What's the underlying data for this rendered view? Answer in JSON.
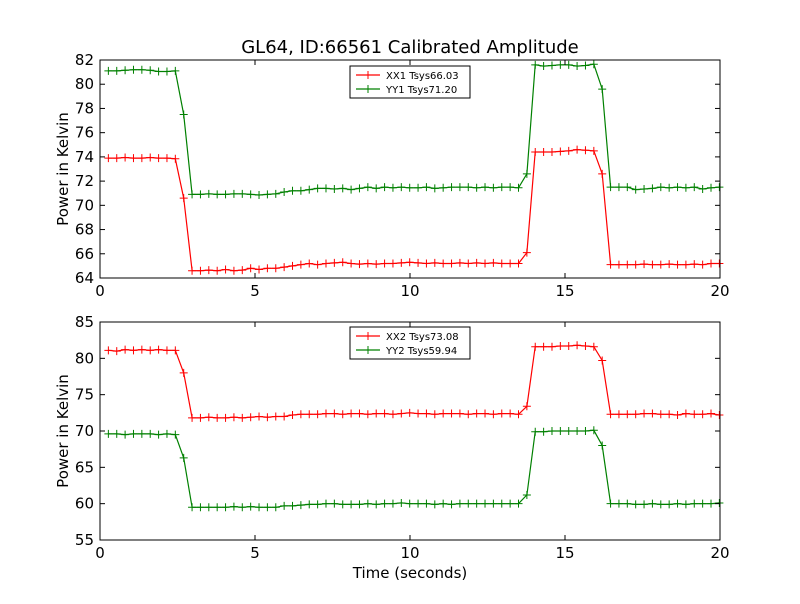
{
  "figure": {
    "title": "GL64, ID:66561 Calibrated Amplitude",
    "xlabel": "Time (seconds)"
  },
  "chart_data": [
    {
      "type": "line",
      "title": "GL64, ID:66561 Calibrated Amplitude",
      "xlabel": "",
      "ylabel": "Power in Kelvin",
      "xlim": [
        0,
        20
      ],
      "ylim": [
        64,
        82
      ],
      "xticks": [
        0,
        5,
        10,
        15,
        20
      ],
      "yticks": [
        64,
        66,
        68,
        70,
        72,
        74,
        76,
        78,
        80,
        82
      ],
      "grid": false,
      "legend_position": "top-center",
      "marker": "+",
      "series": [
        {
          "name": "XX1 Tsys66.03",
          "color": "#ff0000",
          "x": [
            0.27,
            0.54,
            0.81,
            1.08,
            1.35,
            1.62,
            1.89,
            2.16,
            2.43,
            2.7,
            2.97,
            3.24,
            3.51,
            3.78,
            4.05,
            4.32,
            4.59,
            4.86,
            5.13,
            5.4,
            5.67,
            5.94,
            6.21,
            6.48,
            6.75,
            7.02,
            7.29,
            7.56,
            7.83,
            8.1,
            8.37,
            8.64,
            8.91,
            9.18,
            9.45,
            9.72,
            9.99,
            10.26,
            10.53,
            10.8,
            11.07,
            11.34,
            11.61,
            11.88,
            12.15,
            12.42,
            12.69,
            12.96,
            13.23,
            13.5,
            13.77,
            14.04,
            14.31,
            14.58,
            14.85,
            15.12,
            15.39,
            15.66,
            15.93,
            16.2,
            16.47,
            16.74,
            17.01,
            17.28,
            17.55,
            17.82,
            18.09,
            18.36,
            18.63,
            18.9,
            19.17,
            19.44,
            19.71,
            19.98
          ],
          "y": [
            73.9,
            73.9,
            73.95,
            73.9,
            73.9,
            73.95,
            73.9,
            73.9,
            73.85,
            70.6,
            64.6,
            64.6,
            64.65,
            64.6,
            64.7,
            64.6,
            64.65,
            64.8,
            64.7,
            64.8,
            64.8,
            64.9,
            65.0,
            65.1,
            65.2,
            65.1,
            65.2,
            65.25,
            65.3,
            65.2,
            65.15,
            65.2,
            65.15,
            65.2,
            65.2,
            65.25,
            65.3,
            65.25,
            65.2,
            65.25,
            65.2,
            65.2,
            65.25,
            65.2,
            65.25,
            65.2,
            65.25,
            65.2,
            65.2,
            65.2,
            66.1,
            74.4,
            74.4,
            74.4,
            74.45,
            74.5,
            74.6,
            74.55,
            74.5,
            72.6,
            65.1,
            65.1,
            65.1,
            65.1,
            65.15,
            65.1,
            65.1,
            65.15,
            65.1,
            65.1,
            65.15,
            65.1,
            65.2,
            65.2
          ]
        },
        {
          "name": "YY1 Tsys71.20",
          "color": "#008000",
          "x": [
            0.27,
            0.54,
            0.81,
            1.08,
            1.35,
            1.62,
            1.89,
            2.16,
            2.43,
            2.7,
            2.97,
            3.24,
            3.51,
            3.78,
            4.05,
            4.32,
            4.59,
            4.86,
            5.13,
            5.4,
            5.67,
            5.94,
            6.21,
            6.48,
            6.75,
            7.02,
            7.29,
            7.56,
            7.83,
            8.1,
            8.37,
            8.64,
            8.91,
            9.18,
            9.45,
            9.72,
            9.99,
            10.26,
            10.53,
            10.8,
            11.07,
            11.34,
            11.61,
            11.88,
            12.15,
            12.42,
            12.69,
            12.96,
            13.23,
            13.5,
            13.77,
            14.04,
            14.31,
            14.58,
            14.85,
            15.12,
            15.39,
            15.66,
            15.93,
            16.2,
            16.47,
            16.74,
            17.01,
            17.28,
            17.55,
            17.82,
            18.09,
            18.36,
            18.63,
            18.9,
            19.17,
            19.44,
            19.71,
            19.98
          ],
          "y": [
            81.1,
            81.1,
            81.15,
            81.2,
            81.2,
            81.15,
            81.05,
            81.05,
            81.1,
            77.5,
            70.9,
            70.9,
            70.95,
            70.9,
            70.9,
            70.95,
            70.95,
            70.9,
            70.85,
            70.9,
            70.95,
            71.1,
            71.2,
            71.2,
            71.3,
            71.4,
            71.4,
            71.35,
            71.4,
            71.3,
            71.4,
            71.5,
            71.4,
            71.5,
            71.45,
            71.5,
            71.45,
            71.45,
            71.5,
            71.4,
            71.45,
            71.5,
            71.5,
            71.5,
            71.45,
            71.5,
            71.45,
            71.5,
            71.5,
            71.45,
            72.6,
            81.6,
            81.5,
            81.55,
            81.6,
            81.6,
            81.5,
            81.55,
            81.65,
            79.6,
            71.5,
            71.5,
            71.5,
            71.3,
            71.35,
            71.4,
            71.5,
            71.45,
            71.5,
            71.45,
            71.5,
            71.35,
            71.45,
            71.5
          ]
        }
      ]
    },
    {
      "type": "line",
      "title": "",
      "xlabel": "Time (seconds)",
      "ylabel": "Power in Kelvin",
      "xlim": [
        0,
        20
      ],
      "ylim": [
        55,
        85
      ],
      "xticks": [
        0,
        5,
        10,
        15,
        20
      ],
      "yticks": [
        55,
        60,
        65,
        70,
        75,
        80,
        85
      ],
      "grid": false,
      "legend_position": "top-center",
      "marker": "+",
      "series": [
        {
          "name": "XX2 Tsys73.08",
          "color": "#ff0000",
          "x": [
            0.27,
            0.54,
            0.81,
            1.08,
            1.35,
            1.62,
            1.89,
            2.16,
            2.43,
            2.7,
            2.97,
            3.24,
            3.51,
            3.78,
            4.05,
            4.32,
            4.59,
            4.86,
            5.13,
            5.4,
            5.67,
            5.94,
            6.21,
            6.48,
            6.75,
            7.02,
            7.29,
            7.56,
            7.83,
            8.1,
            8.37,
            8.64,
            8.91,
            9.18,
            9.45,
            9.72,
            9.99,
            10.26,
            10.53,
            10.8,
            11.07,
            11.34,
            11.61,
            11.88,
            12.15,
            12.42,
            12.69,
            12.96,
            13.23,
            13.5,
            13.77,
            14.04,
            14.31,
            14.58,
            14.85,
            15.12,
            15.39,
            15.66,
            15.93,
            16.2,
            16.47,
            16.74,
            17.01,
            17.28,
            17.55,
            17.82,
            18.09,
            18.36,
            18.63,
            18.9,
            19.17,
            19.44,
            19.71,
            19.98
          ],
          "y": [
            81.1,
            81.0,
            81.2,
            81.1,
            81.2,
            81.1,
            81.2,
            81.1,
            81.1,
            78.0,
            71.8,
            71.8,
            71.9,
            71.8,
            71.8,
            71.9,
            71.8,
            71.9,
            72.0,
            71.9,
            72.0,
            72.0,
            72.2,
            72.3,
            72.3,
            72.3,
            72.4,
            72.4,
            72.3,
            72.4,
            72.4,
            72.3,
            72.4,
            72.4,
            72.3,
            72.4,
            72.5,
            72.4,
            72.4,
            72.3,
            72.4,
            72.4,
            72.4,
            72.3,
            72.4,
            72.4,
            72.3,
            72.4,
            72.4,
            72.3,
            73.4,
            81.6,
            81.6,
            81.6,
            81.7,
            81.7,
            81.8,
            81.7,
            81.6,
            79.7,
            72.3,
            72.3,
            72.3,
            72.3,
            72.4,
            72.4,
            72.3,
            72.3,
            72.2,
            72.4,
            72.3,
            72.3,
            72.4,
            72.2
          ]
        },
        {
          "name": "YY2 Tsys59.94",
          "color": "#008000",
          "x": [
            0.27,
            0.54,
            0.81,
            1.08,
            1.35,
            1.62,
            1.89,
            2.16,
            2.43,
            2.7,
            2.97,
            3.24,
            3.51,
            3.78,
            4.05,
            4.32,
            4.59,
            4.86,
            5.13,
            5.4,
            5.67,
            5.94,
            6.21,
            6.48,
            6.75,
            7.02,
            7.29,
            7.56,
            7.83,
            8.1,
            8.37,
            8.64,
            8.91,
            9.18,
            9.45,
            9.72,
            9.99,
            10.26,
            10.53,
            10.8,
            11.07,
            11.34,
            11.61,
            11.88,
            12.15,
            12.42,
            12.69,
            12.96,
            13.23,
            13.5,
            13.77,
            14.04,
            14.31,
            14.58,
            14.85,
            15.12,
            15.39,
            15.66,
            15.93,
            16.2,
            16.47,
            16.74,
            17.01,
            17.28,
            17.55,
            17.82,
            18.09,
            18.36,
            18.63,
            18.9,
            19.17,
            19.44,
            19.71,
            19.98
          ],
          "y": [
            69.6,
            69.6,
            69.5,
            69.6,
            69.6,
            69.6,
            69.5,
            69.6,
            69.5,
            66.3,
            59.5,
            59.5,
            59.5,
            59.5,
            59.5,
            59.6,
            59.5,
            59.6,
            59.5,
            59.5,
            59.5,
            59.7,
            59.7,
            59.8,
            59.9,
            59.9,
            60.0,
            60.0,
            59.9,
            59.9,
            59.9,
            60.0,
            59.9,
            60.0,
            60.0,
            60.1,
            60.0,
            60.0,
            60.0,
            59.9,
            60.0,
            59.9,
            60.0,
            60.0,
            60.0,
            60.0,
            60.0,
            60.0,
            60.0,
            60.0,
            61.2,
            69.9,
            69.9,
            70.0,
            70.0,
            70.0,
            70.0,
            70.0,
            70.1,
            68.0,
            60.0,
            60.0,
            60.0,
            59.9,
            59.9,
            60.0,
            59.9,
            59.9,
            60.0,
            59.9,
            60.0,
            60.0,
            60.0,
            60.1
          ]
        }
      ]
    }
  ]
}
